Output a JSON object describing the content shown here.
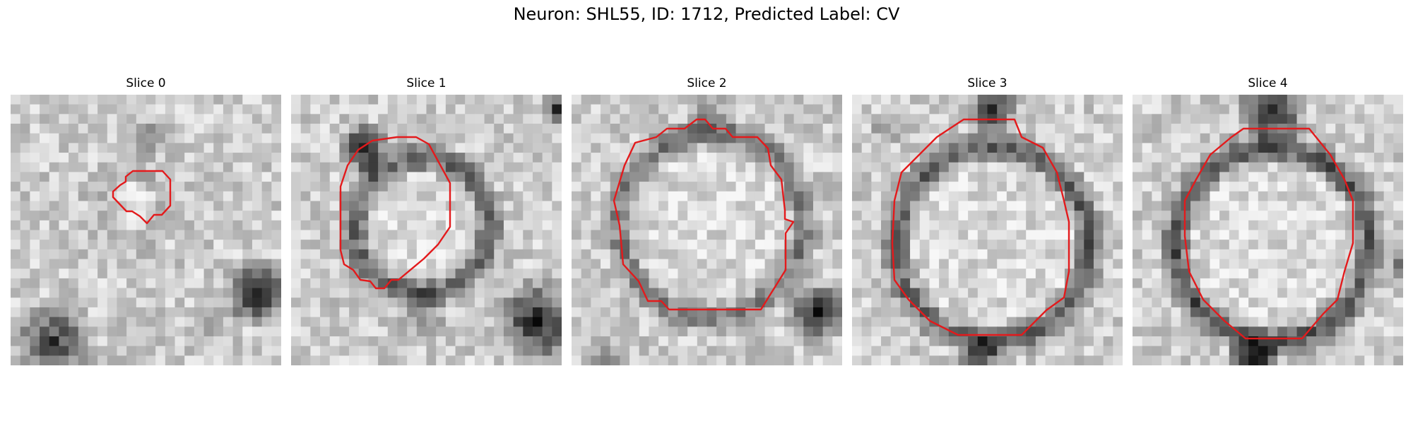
{
  "title": "Neuron: SHL55, ID: 1712, Predicted Label: CV",
  "panels": [
    {
      "label": "Slice 0"
    },
    {
      "label": "Slice 1"
    },
    {
      "label": "Slice 2"
    },
    {
      "label": "Slice 3"
    },
    {
      "label": "Slice 4"
    }
  ],
  "colors": {
    "contour": "#e31a1c",
    "background": "#ffffff"
  }
}
